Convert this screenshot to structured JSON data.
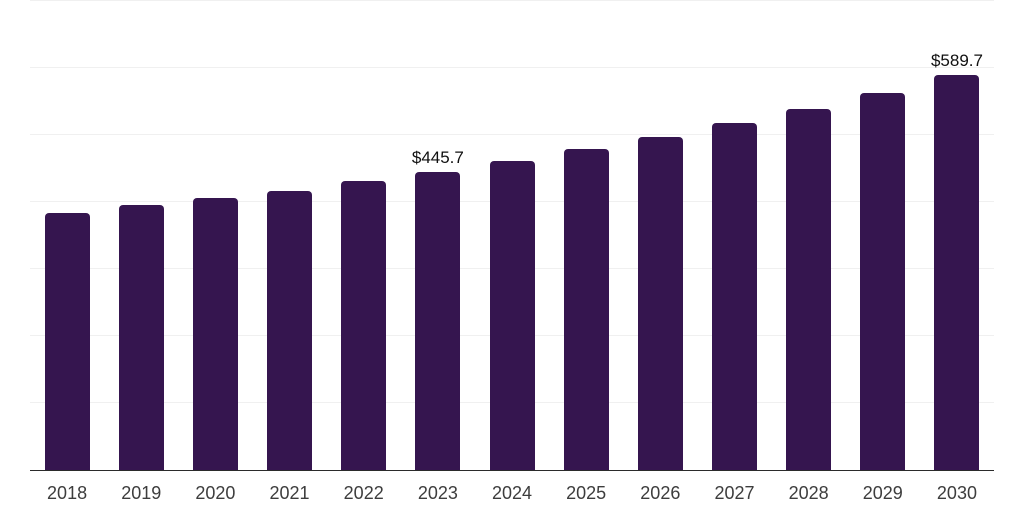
{
  "chart_data": {
    "type": "bar",
    "title": "",
    "xlabel": "",
    "ylabel": "",
    "categories": [
      "2018",
      "2019",
      "2020",
      "2021",
      "2022",
      "2023",
      "2024",
      "2025",
      "2026",
      "2027",
      "2028",
      "2029",
      "2030"
    ],
    "values": [
      383.9,
      395.3,
      406.2,
      417.2,
      431.1,
      445.7,
      462.0,
      478.9,
      496.9,
      517.9,
      539.0,
      563.5,
      589.7
    ],
    "annotations": [
      {
        "category": "2023",
        "text": "$445.7"
      },
      {
        "category": "2030",
        "text": "$589.7"
      }
    ],
    "ylim": [
      0,
      702
    ],
    "gridline_interval": 100,
    "grid": "horizontal-only",
    "legend": false,
    "y_axis_labels_visible": false,
    "colors": {
      "bar": "#35154f",
      "gridline": "#f0f0f0",
      "axis_line": "#2b2b2b",
      "tick_label": "#3d3d3d",
      "value_label": "#101010",
      "background": "#ffffff"
    }
  }
}
